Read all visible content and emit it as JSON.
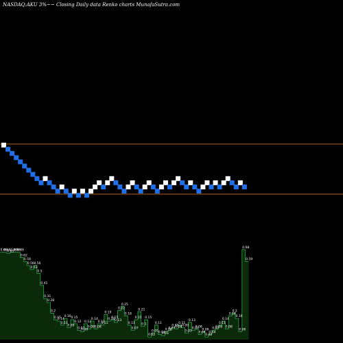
{
  "title": "NASDAQ:AKU 3%~~ Closing Daily data Renko charts MunafaSutra.com",
  "colors": {
    "background": "#000000",
    "up_brick": "#ffffff",
    "down_brick": "#1e6fe8",
    "guide_line": "#b4601a",
    "volume_fill": "#0a2a0a",
    "volume_line": "#2ea84a"
  },
  "chart_data": [
    {
      "type": "renko",
      "title": "NASDAQ:AKU 3%~~ Closing Daily data Renko charts MunafaSutra.com",
      "bricks": [
        {
          "level": 0,
          "dir": "up"
        },
        {
          "level": -1,
          "dir": "down"
        },
        {
          "level": -2,
          "dir": "down"
        },
        {
          "level": -3,
          "dir": "down"
        },
        {
          "level": -4,
          "dir": "down"
        },
        {
          "level": -5,
          "dir": "down"
        },
        {
          "level": -6,
          "dir": "down"
        },
        {
          "level": -7,
          "dir": "down"
        },
        {
          "level": -8,
          "dir": "down"
        },
        {
          "level": -9,
          "dir": "down"
        },
        {
          "level": -8,
          "dir": "up"
        },
        {
          "level": -9,
          "dir": "down"
        },
        {
          "level": -10,
          "dir": "down"
        },
        {
          "level": -11,
          "dir": "down"
        },
        {
          "level": -10,
          "dir": "up"
        },
        {
          "level": -11,
          "dir": "down"
        },
        {
          "level": -12,
          "dir": "down"
        },
        {
          "level": -11,
          "dir": "up"
        },
        {
          "level": -12,
          "dir": "down"
        },
        {
          "level": -11,
          "dir": "up"
        },
        {
          "level": -12,
          "dir": "down"
        },
        {
          "level": -11,
          "dir": "up"
        },
        {
          "level": -10,
          "dir": "up"
        },
        {
          "level": -9,
          "dir": "up"
        },
        {
          "level": -10,
          "dir": "down"
        },
        {
          "level": -9,
          "dir": "up"
        },
        {
          "level": -8,
          "dir": "up"
        },
        {
          "level": -9,
          "dir": "down"
        },
        {
          "level": -10,
          "dir": "down"
        },
        {
          "level": -11,
          "dir": "down"
        },
        {
          "level": -10,
          "dir": "up"
        },
        {
          "level": -9,
          "dir": "up"
        },
        {
          "level": -10,
          "dir": "down"
        },
        {
          "level": -11,
          "dir": "down"
        },
        {
          "level": -10,
          "dir": "up"
        },
        {
          "level": -9,
          "dir": "up"
        },
        {
          "level": -10,
          "dir": "down"
        },
        {
          "level": -11,
          "dir": "down"
        },
        {
          "level": -10,
          "dir": "up"
        },
        {
          "level": -9,
          "dir": "up"
        },
        {
          "level": -10,
          "dir": "down"
        },
        {
          "level": -9,
          "dir": "up"
        },
        {
          "level": -8,
          "dir": "up"
        },
        {
          "level": -9,
          "dir": "down"
        },
        {
          "level": -10,
          "dir": "down"
        },
        {
          "level": -9,
          "dir": "up"
        },
        {
          "level": -10,
          "dir": "down"
        },
        {
          "level": -11,
          "dir": "down"
        },
        {
          "level": -10,
          "dir": "up"
        },
        {
          "level": -9,
          "dir": "up"
        },
        {
          "level": -10,
          "dir": "down"
        },
        {
          "level": -9,
          "dir": "up"
        },
        {
          "level": -10,
          "dir": "down"
        },
        {
          "level": -9,
          "dir": "up"
        },
        {
          "level": -8,
          "dir": "up"
        },
        {
          "level": -9,
          "dir": "down"
        },
        {
          "level": -10,
          "dir": "down"
        },
        {
          "level": -9,
          "dir": "up"
        },
        {
          "level": -10,
          "dir": "down"
        }
      ]
    },
    {
      "type": "area",
      "series_label": "volume",
      "values": [
        0.66,
        0.66,
        0.65,
        0.66,
        0.66,
        0.66,
        0.62,
        0.59,
        0.56,
        0.53,
        0.56,
        0.5,
        0.41,
        0.31,
        0.28,
        0.2,
        0.15,
        0.14,
        0.11,
        0.16,
        0.09,
        0.15,
        0.12,
        0.07,
        0.06,
        0.12,
        0.08,
        0.14,
        0.08,
        0.12,
        0.11,
        0.19,
        0.14,
        0.15,
        0.13,
        0.22,
        0.25,
        0.18,
        0.11,
        0.07,
        0.15,
        0.21,
        0.1,
        0.15,
        0.02,
        0.05,
        0.11,
        0.04,
        0.03,
        0.06,
        0.07,
        0.09,
        0.08,
        0.11,
        0.09,
        0.05,
        0.13,
        0.07,
        0.08,
        0.04,
        0.06,
        0.02,
        0.04,
        0.07,
        0.08,
        0.11,
        0.14,
        0.08,
        0.18,
        0.2,
        0.16,
        0.06,
        0.68,
        0.59
      ],
      "labels": [
        "0.66",
        "0.66",
        "0.65",
        "0.66",
        "0.66",
        "0.66",
        "0.62",
        "0.59",
        "0.56",
        "0.53",
        "0.56",
        "0.5",
        "0.41",
        "0.31",
        "0.28",
        "0.2",
        "0.15",
        "0.14",
        "0.11",
        "0.16",
        "0.09",
        "0.15",
        "0.12",
        "0.07",
        "0.06",
        "0.12",
        "0.08",
        "0.14",
        "0.08",
        "0.12",
        "0.11",
        "0.19",
        "0.14",
        "0.15",
        "0.13",
        "0.22",
        "0.25",
        "0.18",
        "0.11",
        "0.07",
        "0.15",
        "0.21",
        "0.1",
        "0.15",
        "0.02",
        "0.05",
        "0.11",
        "0.04",
        "0.03",
        "0.06",
        "0.07",
        "0.09",
        "0.08",
        "0.11",
        "0.09",
        "0.05",
        "0.13",
        "0.07",
        "0.08",
        "0.04",
        "0.06",
        "0.02",
        "0.04",
        "0.07",
        "0.08",
        "0.11",
        "0.14",
        "0.08",
        "0.18",
        "0.2",
        "0.16",
        "0.06",
        "0.68",
        "0.59"
      ],
      "ylim": [
        0,
        0.7
      ]
    }
  ]
}
